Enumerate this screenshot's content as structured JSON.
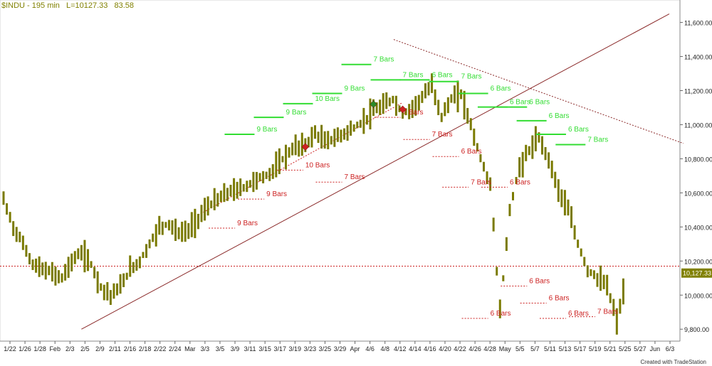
{
  "header": {
    "symbol": "$INDU - 195 min",
    "last": "L=10127.33",
    "indicator": "83.58"
  },
  "credit": "Created with TradeStation",
  "last_price_badge": "10,127.33",
  "colors": {
    "bars": "#7a7a00",
    "green": "#33dd33",
    "red": "#cc2222",
    "trend": "#8b2a2a",
    "badge_bg": "#808000"
  },
  "chart_data": {
    "type": "ohlc",
    "y_axis": {
      "ticks": [
        9800,
        10000,
        10200,
        10400,
        10600,
        10800,
        11000,
        11200,
        11400,
        11600
      ],
      "tick_labels": [
        "9,800.00",
        "10,000.00",
        "10,200.00",
        "10,400.00",
        "10,600.00",
        "10,800.00",
        "11,000.00",
        "11,200.00",
        "11,400.00",
        "11,600.00"
      ],
      "range": [
        9730,
        11690
      ],
      "side": "right"
    },
    "x_axis": {
      "labels": [
        "1/22",
        "1/26",
        "1/28",
        "Feb",
        "2/3",
        "2/5",
        "2/9",
        "2/11",
        "2/16",
        "2/18",
        "2/22",
        "2/24",
        "Mar",
        "3/3",
        "3/5",
        "3/9",
        "3/11",
        "3/15",
        "3/17",
        "3/19",
        "3/23",
        "3/25",
        "3/29",
        "Apr",
        "4/6",
        "4/8",
        "4/12",
        "4/14",
        "4/16",
        "4/20",
        "4/22",
        "4/26",
        "4/28",
        "May",
        "5/5",
        "5/7",
        "5/11",
        "5/13",
        "5/17",
        "5/19",
        "5/21",
        "5/25",
        "5/27",
        "Jun",
        "6/3"
      ]
    },
    "price_path": [
      [
        0,
        10560
      ],
      [
        1,
        10400
      ],
      [
        2,
        10300
      ],
      [
        3,
        10180
      ],
      [
        4,
        10150
      ],
      [
        5,
        10130
      ],
      [
        6,
        10100
      ],
      [
        7,
        10200
      ],
      [
        8,
        10250
      ],
      [
        9,
        10180
      ],
      [
        10,
        10050
      ],
      [
        11,
        10000
      ],
      [
        12,
        10050
      ],
      [
        13,
        10150
      ],
      [
        14,
        10200
      ],
      [
        15,
        10300
      ],
      [
        16,
        10400
      ],
      [
        17,
        10420
      ],
      [
        18,
        10360
      ],
      [
        19,
        10380
      ],
      [
        20,
        10450
      ],
      [
        21,
        10520
      ],
      [
        22,
        10560
      ],
      [
        23,
        10600
      ],
      [
        24,
        10620
      ],
      [
        25,
        10640
      ],
      [
        26,
        10680
      ],
      [
        27,
        10700
      ],
      [
        28,
        10750
      ],
      [
        29,
        10820
      ],
      [
        30,
        10870
      ],
      [
        31,
        10880
      ],
      [
        32,
        10950
      ],
      [
        33,
        10900
      ],
      [
        34,
        10920
      ],
      [
        35,
        10950
      ],
      [
        36,
        10980
      ],
      [
        37,
        11020
      ],
      [
        38,
        11080
      ],
      [
        39,
        11110
      ],
      [
        40,
        11150
      ],
      [
        41,
        11060
      ],
      [
        42,
        11100
      ],
      [
        43,
        11160
      ],
      [
        44,
        11230
      ],
      [
        45,
        11050
      ],
      [
        46,
        11150
      ],
      [
        47,
        11180
      ],
      [
        48,
        11000
      ],
      [
        49,
        10800
      ],
      [
        50,
        10650
      ],
      [
        51,
        9900
      ],
      [
        52,
        10500
      ],
      [
        53,
        10750
      ],
      [
        54,
        10850
      ],
      [
        55,
        10920
      ],
      [
        56,
        10800
      ],
      [
        57,
        10620
      ],
      [
        58,
        10500
      ],
      [
        59,
        10300
      ],
      [
        60,
        10150
      ],
      [
        61,
        10100
      ],
      [
        62,
        10050
      ],
      [
        63,
        9850
      ],
      [
        64,
        10100
      ]
    ],
    "price_path_x_range": [
      0,
      64
    ],
    "trend_up": {
      "start": {
        "x_index": 8,
        "price": 9800
      },
      "end": {
        "x_index": 64,
        "price": 11650
      }
    },
    "trend_down": {
      "start": {
        "x_index": 43,
        "price": 11500
      },
      "end": {
        "x_index": 64,
        "price": 10890
      }
    },
    "hline": {
      "price": 10170
    },
    "red_dotted_line": {
      "start": {
        "x_index": 20,
        "price": 10470
      },
      "end": {
        "x_index": 41,
        "price": 11130
      }
    },
    "green_labels": [
      {
        "label": "9 Bars",
        "x_index": 26,
        "price": 10960
      },
      {
        "label": "9 Bars",
        "x_index": 29,
        "price": 11060
      },
      {
        "label": "10 Bars",
        "x_index": 32,
        "price": 11140
      },
      {
        "label": "9 Bars",
        "x_index": 35,
        "price": 11200
      },
      {
        "label": "7 Bars",
        "x_index": 38,
        "price": 11370
      },
      {
        "label": "7 Bars",
        "x_index": 41,
        "price": 11280
      },
      {
        "label": "6 Bars",
        "x_index": 44,
        "price": 11280
      },
      {
        "label": "7 Bars",
        "x_index": 47,
        "price": 11270
      },
      {
        "label": "6 Bars",
        "x_index": 50,
        "price": 11200
      },
      {
        "label": "6 Bars",
        "x_index": 52,
        "price": 11120
      },
      {
        "label": "6 Bars",
        "x_index": 54,
        "price": 11120
      },
      {
        "label": "6 Bars",
        "x_index": 56,
        "price": 11040
      },
      {
        "label": "6 Bars",
        "x_index": 58,
        "price": 10960
      },
      {
        "label": "7 Bars",
        "x_index": 60,
        "price": 10900
      }
    ],
    "red_labels": [
      {
        "label": "9 Bars",
        "x_index": 24,
        "price": 10410
      },
      {
        "label": "9 Bars",
        "x_index": 27,
        "price": 10580
      },
      {
        "label": "10 Bars",
        "x_index": 31,
        "price": 10750
      },
      {
        "label": "7 Bars",
        "x_index": 35,
        "price": 10680
      },
      {
        "label": "7 Bars",
        "x_index": 41,
        "price": 11060
      },
      {
        "label": "7 Bars",
        "x_index": 44,
        "price": 10930
      },
      {
        "label": "6 Bars",
        "x_index": 47,
        "price": 10830
      },
      {
        "label": "7 Bars",
        "x_index": 48,
        "price": 10650
      },
      {
        "label": "6 Bars",
        "x_index": 52,
        "price": 10650
      },
      {
        "label": "6 Bars",
        "x_index": 50,
        "price": 9880
      },
      {
        "label": "6 Bars",
        "x_index": 54,
        "price": 10070
      },
      {
        "label": "6 Bars",
        "x_index": 56,
        "price": 9970
      },
      {
        "label": "6 Bars",
        "x_index": 58,
        "price": 9880
      },
      {
        "label": "7 Bars",
        "x_index": 61,
        "price": 9890
      }
    ]
  }
}
